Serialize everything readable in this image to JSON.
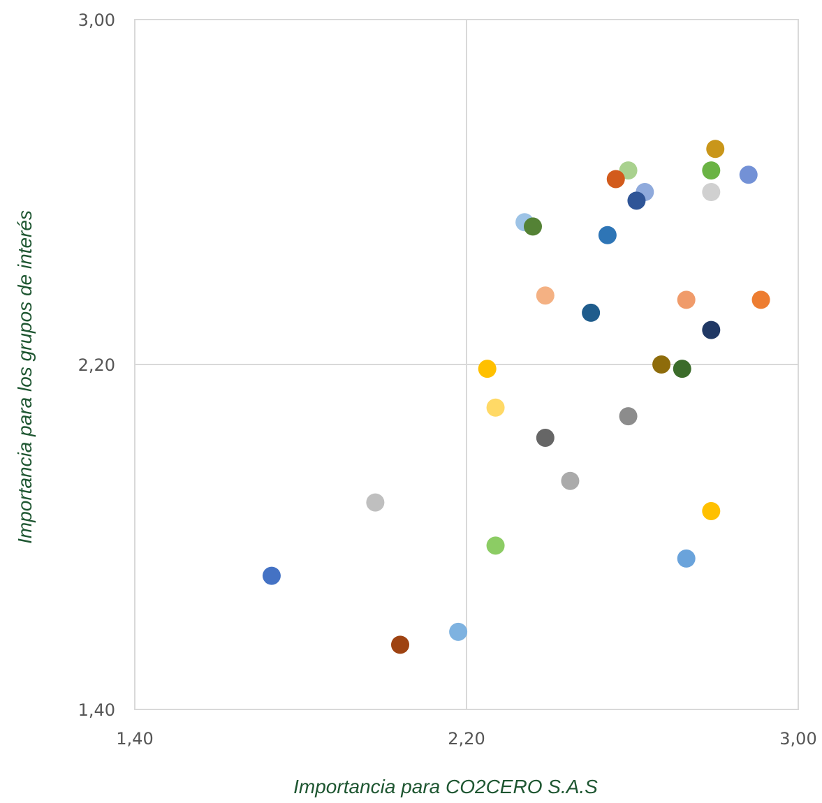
{
  "chart_data": {
    "type": "scatter",
    "title": "",
    "xlabel": "Importancia para CO2CERO  S.A.S",
    "ylabel": "Importancia para los grupos de interés",
    "xlim": [
      1.4,
      3.0
    ],
    "ylim": [
      1.4,
      3.0
    ],
    "x_ticks": [
      "1,40",
      "2,20",
      "3,00"
    ],
    "y_ticks": [
      "1,40",
      "2,20",
      "3,00"
    ],
    "x_tick_values": [
      1.4,
      2.2,
      3.0
    ],
    "y_tick_values": [
      1.4,
      2.2,
      3.0
    ],
    "quadrant_lines": {
      "x": 2.2,
      "y": 2.2
    },
    "grid": false,
    "points": [
      {
        "x": 2.8,
        "y": 2.7,
        "color": "#c9961a"
      },
      {
        "x": 2.79,
        "y": 2.65,
        "color": "#6ab344"
      },
      {
        "x": 2.88,
        "y": 2.64,
        "color": "#7391d6"
      },
      {
        "x": 2.59,
        "y": 2.65,
        "color": "#a9d18e"
      },
      {
        "x": 2.56,
        "y": 2.63,
        "color": "#d25b1c"
      },
      {
        "x": 2.63,
        "y": 2.6,
        "color": "#8faadc"
      },
      {
        "x": 2.79,
        "y": 2.6,
        "color": "#d0d0d0"
      },
      {
        "x": 2.61,
        "y": 2.58,
        "color": "#2f5597"
      },
      {
        "x": 2.34,
        "y": 2.53,
        "color": "#9dc3e6"
      },
      {
        "x": 2.36,
        "y": 2.52,
        "color": "#548235"
      },
      {
        "x": 2.54,
        "y": 2.5,
        "color": "#2e75b6"
      },
      {
        "x": 2.39,
        "y": 2.36,
        "color": "#f4b183"
      },
      {
        "x": 2.73,
        "y": 2.35,
        "color": "#f09b6a"
      },
      {
        "x": 2.91,
        "y": 2.35,
        "color": "#ed7d31"
      },
      {
        "x": 2.5,
        "y": 2.32,
        "color": "#1f5c8c"
      },
      {
        "x": 2.79,
        "y": 2.28,
        "color": "#203864"
      },
      {
        "x": 2.67,
        "y": 2.2,
        "color": "#8e6c0b"
      },
      {
        "x": 2.72,
        "y": 2.19,
        "color": "#3b6c2a"
      },
      {
        "x": 2.25,
        "y": 2.19,
        "color": "#ffc000"
      },
      {
        "x": 2.27,
        "y": 2.1,
        "color": "#ffd966"
      },
      {
        "x": 2.59,
        "y": 2.08,
        "color": "#8c8c8c"
      },
      {
        "x": 2.39,
        "y": 2.03,
        "color": "#666666"
      },
      {
        "x": 2.45,
        "y": 1.93,
        "color": "#aaaaaa"
      },
      {
        "x": 1.98,
        "y": 1.88,
        "color": "#bfbfbf"
      },
      {
        "x": 2.79,
        "y": 1.86,
        "color": "#ffc000"
      },
      {
        "x": 2.27,
        "y": 1.78,
        "color": "#8ccc64"
      },
      {
        "x": 2.73,
        "y": 1.75,
        "color": "#6aa3db"
      },
      {
        "x": 1.73,
        "y": 1.71,
        "color": "#4472c4"
      },
      {
        "x": 2.18,
        "y": 1.58,
        "color": "#7eb2e0"
      },
      {
        "x": 2.04,
        "y": 1.55,
        "color": "#9e4312"
      }
    ]
  }
}
